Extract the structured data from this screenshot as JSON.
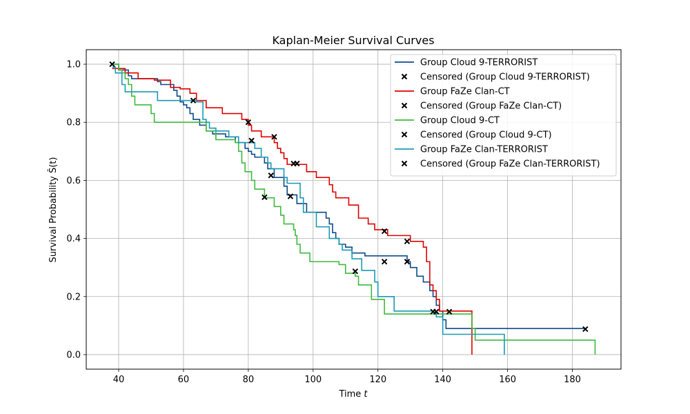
{
  "chart_data": {
    "type": "line",
    "step": true,
    "title": "Kaplan-Meier Survival Curves",
    "xlabel": "Time t",
    "ylabel": "Survival Probability Ŝ(t)",
    "xlim": [
      30,
      195
    ],
    "ylim": [
      -0.05,
      1.05
    ],
    "xticks": [
      40,
      60,
      80,
      100,
      120,
      140,
      160,
      180
    ],
    "yticks": [
      0.0,
      0.2,
      0.4,
      0.6,
      0.8,
      1.0
    ],
    "grid": true,
    "legend_position": "top-right",
    "censor_marker": "x",
    "series": [
      {
        "name": "Group Cloud 9-TERRORIST",
        "censored_name": "Censored (Group Cloud 9-TERRORIST)",
        "color": "#0d4a8a",
        "steps": [
          [
            38,
            1.0
          ],
          [
            40,
            0.98
          ],
          [
            43,
            0.96
          ],
          [
            44,
            0.95
          ],
          [
            52,
            0.94
          ],
          [
            53,
            0.93
          ],
          [
            57,
            0.91
          ],
          [
            58,
            0.89
          ],
          [
            59,
            0.87
          ],
          [
            60,
            0.86
          ],
          [
            61,
            0.85
          ],
          [
            62,
            0.83
          ],
          [
            63,
            0.81
          ],
          [
            65,
            0.79
          ],
          [
            67,
            0.77
          ],
          [
            69,
            0.76
          ],
          [
            73,
            0.75
          ],
          [
            76,
            0.73
          ],
          [
            79,
            0.71
          ],
          [
            80,
            0.7
          ],
          [
            81,
            0.69
          ],
          [
            82,
            0.68
          ],
          [
            85,
            0.66
          ],
          [
            86,
            0.64
          ],
          [
            88,
            0.61
          ],
          [
            91,
            0.58
          ],
          [
            92,
            0.55
          ],
          [
            95,
            0.52
          ],
          [
            98,
            0.49
          ],
          [
            104,
            0.47
          ],
          [
            105,
            0.45
          ],
          [
            106,
            0.42
          ],
          [
            107,
            0.4
          ],
          [
            108,
            0.38
          ],
          [
            110,
            0.37
          ],
          [
            112,
            0.35
          ],
          [
            116,
            0.34
          ],
          [
            129,
            0.32
          ],
          [
            130,
            0.3
          ],
          [
            132,
            0.27
          ],
          [
            134,
            0.25
          ],
          [
            136,
            0.22
          ],
          [
            137,
            0.2
          ],
          [
            138,
            0.17
          ],
          [
            139,
            0.15
          ],
          [
            140,
            0.12
          ],
          [
            141,
            0.09
          ],
          [
            184,
            0.09
          ]
        ],
        "censored": [
          [
            38,
            1.0
          ],
          [
            63,
            0.875
          ],
          [
            81,
            0.737
          ],
          [
            87,
            0.617
          ],
          [
            93,
            0.545
          ],
          [
            122,
            0.32
          ],
          [
            129,
            0.32
          ],
          [
            184,
            0.088
          ]
        ]
      },
      {
        "name": "Group FaZe Clan-CT",
        "censored_name": "Censored (Group FaZe Clan-CT)",
        "color": "#e00000",
        "steps": [
          [
            38,
            0.985
          ],
          [
            42,
            0.97
          ],
          [
            46,
            0.95
          ],
          [
            51,
            0.945
          ],
          [
            56,
            0.92
          ],
          [
            59,
            0.915
          ],
          [
            62,
            0.9
          ],
          [
            64,
            0.875
          ],
          [
            67,
            0.85
          ],
          [
            72,
            0.83
          ],
          [
            78,
            0.81
          ],
          [
            80,
            0.79
          ],
          [
            81,
            0.77
          ],
          [
            84,
            0.75
          ],
          [
            88,
            0.73
          ],
          [
            89,
            0.71
          ],
          [
            90,
            0.695
          ],
          [
            91,
            0.675
          ],
          [
            92,
            0.655
          ],
          [
            96,
            0.655
          ],
          [
            98,
            0.63
          ],
          [
            101,
            0.61
          ],
          [
            105,
            0.585
          ],
          [
            106,
            0.56
          ],
          [
            107,
            0.54
          ],
          [
            111,
            0.515
          ],
          [
            114,
            0.47
          ],
          [
            117,
            0.45
          ],
          [
            119,
            0.43
          ],
          [
            123,
            0.41
          ],
          [
            130,
            0.39
          ],
          [
            134,
            0.37
          ],
          [
            135,
            0.32
          ],
          [
            136,
            0.24
          ],
          [
            137,
            0.22
          ],
          [
            138,
            0.19
          ],
          [
            139,
            0.15
          ],
          [
            149,
            0.0
          ]
        ],
        "censored": [
          [
            80,
            0.8
          ],
          [
            88,
            0.75
          ],
          [
            94,
            0.658
          ],
          [
            95,
            0.658
          ],
          [
            122,
            0.425
          ],
          [
            129,
            0.39
          ],
          [
            138,
            0.148
          ]
        ]
      },
      {
        "name": "Group Cloud 9-CT",
        "censored_name": "Censored (Group Cloud 9-CT)",
        "color": "#3cba3c",
        "steps": [
          [
            38,
            1.0
          ],
          [
            40,
            0.98
          ],
          [
            41,
            0.97
          ],
          [
            42,
            0.95
          ],
          [
            43,
            0.93
          ],
          [
            44,
            0.89
          ],
          [
            45,
            0.86
          ],
          [
            50,
            0.83
          ],
          [
            51,
            0.8
          ],
          [
            65,
            0.8
          ],
          [
            67,
            0.77
          ],
          [
            70,
            0.74
          ],
          [
            76,
            0.73
          ],
          [
            77,
            0.7
          ],
          [
            78,
            0.66
          ],
          [
            79,
            0.63
          ],
          [
            81,
            0.6
          ],
          [
            82,
            0.57
          ],
          [
            85,
            0.54
          ],
          [
            88,
            0.51
          ],
          [
            90,
            0.48
          ],
          [
            91,
            0.45
          ],
          [
            94,
            0.43
          ],
          [
            94.5,
            0.41
          ],
          [
            95,
            0.38
          ],
          [
            96,
            0.35
          ],
          [
            99,
            0.32
          ],
          [
            108,
            0.31
          ],
          [
            110,
            0.28
          ],
          [
            113,
            0.27
          ],
          [
            114,
            0.24
          ],
          [
            118,
            0.19
          ],
          [
            122,
            0.14
          ],
          [
            147,
            0.14
          ],
          [
            149,
            0.09
          ],
          [
            150,
            0.05
          ],
          [
            187,
            0.0
          ]
        ],
        "censored": [
          [
            85,
            0.542
          ],
          [
            113,
            0.287
          ]
        ]
      },
      {
        "name": "Group FaZe Clan-TERRORIST",
        "censored_name": "Censored (Group FaZe Clan-TERRORIST)",
        "color": "#1899b4",
        "steps": [
          [
            38,
            0.99
          ],
          [
            39,
            0.97
          ],
          [
            41,
            0.93
          ],
          [
            42,
            0.905
          ],
          [
            52,
            0.875
          ],
          [
            64,
            0.87
          ],
          [
            66,
            0.81
          ],
          [
            67,
            0.8
          ],
          [
            68,
            0.78
          ],
          [
            70,
            0.77
          ],
          [
            74,
            0.75
          ],
          [
            77,
            0.73
          ],
          [
            82,
            0.71
          ],
          [
            84,
            0.68
          ],
          [
            86,
            0.66
          ],
          [
            87,
            0.64
          ],
          [
            91,
            0.61
          ],
          [
            92,
            0.59
          ],
          [
            96,
            0.54
          ],
          [
            97,
            0.49
          ],
          [
            101,
            0.44
          ],
          [
            105,
            0.4
          ],
          [
            108,
            0.38
          ],
          [
            109,
            0.36
          ],
          [
            112,
            0.33
          ],
          [
            115,
            0.29
          ],
          [
            119,
            0.25
          ],
          [
            120,
            0.2
          ],
          [
            125,
            0.15
          ],
          [
            138,
            0.13
          ],
          [
            140,
            0.07
          ],
          [
            159,
            0.0
          ]
        ],
        "censored": [
          [
            137,
            0.148
          ],
          [
            142,
            0.148
          ]
        ]
      }
    ]
  }
}
